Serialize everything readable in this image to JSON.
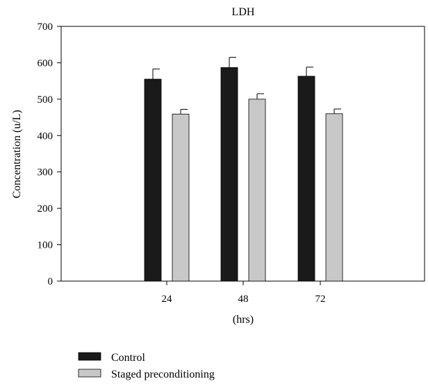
{
  "chart_data": {
    "type": "bar",
    "title": "LDH",
    "xlabel": "(hrs)",
    "ylabel": "Concentration (u/L)",
    "categories": [
      "24",
      "48",
      "72"
    ],
    "ylim": [
      0,
      700
    ],
    "yticks": [
      0,
      100,
      200,
      300,
      400,
      500,
      600,
      700
    ],
    "grid": false,
    "legend_position": "bottom-left",
    "series": [
      {
        "name": "Control",
        "color": "#1a1a1a",
        "values": [
          555,
          587,
          563
        ],
        "errors": [
          28,
          28,
          25
        ]
      },
      {
        "name": "Staged preconditioning",
        "color": "#c8c8c8",
        "values": [
          459,
          500,
          460
        ],
        "errors": [
          13,
          15,
          13
        ]
      }
    ]
  }
}
